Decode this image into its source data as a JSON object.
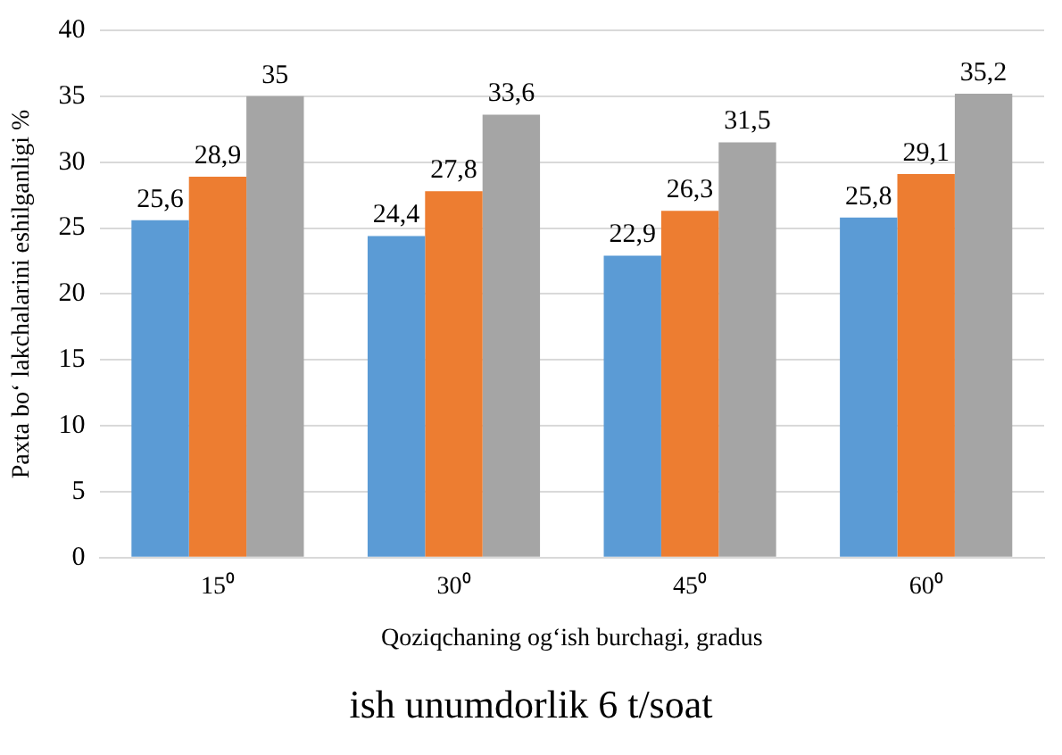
{
  "chart_data": {
    "type": "bar",
    "xlabel": "Qoziqchaning og‘ish burchagi, gradus",
    "ylabel": "Paxta bo‘ lakchalarini eshilganligi %",
    "categories": [
      "15⁰",
      "30⁰",
      "45⁰",
      "60⁰"
    ],
    "series": [
      {
        "color": "#5b9bd5",
        "values": [
          25.6,
          24.4,
          22.9,
          25.8
        ],
        "value_labels": [
          "25,6",
          "24,4",
          "22,9",
          "25,8"
        ]
      },
      {
        "color": "#ed7d31",
        "values": [
          28.9,
          27.8,
          26.3,
          29.1
        ],
        "value_labels": [
          "28,9",
          "27,8",
          "26,3",
          "29,1"
        ]
      },
      {
        "color": "#a5a5a5",
        "values": [
          35,
          33.6,
          31.5,
          35.2
        ],
        "value_labels": [
          "35",
          "33,6",
          "31,5",
          "35,2"
        ]
      }
    ],
    "ylim": [
      0,
      40
    ],
    "yticks": [
      0,
      5,
      10,
      15,
      20,
      25,
      30,
      35,
      40
    ],
    "grid": "y",
    "legend": false,
    "annotations": [
      "ish unumdorlik 6 t/soat"
    ]
  }
}
